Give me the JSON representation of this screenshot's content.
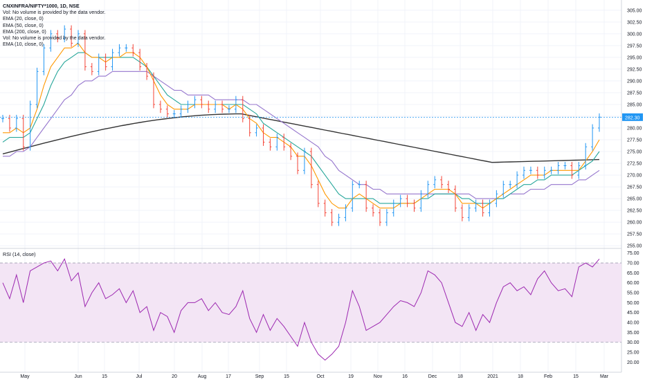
{
  "chart_data": [
    {
      "type": "line",
      "title": "CNXINFRA/NIFTY*1000, 1D, NSE",
      "subtitle": "",
      "legend": [
        "Vol: No volume is provided by the data vendor.",
        "EMA (20, close, 0)",
        "EMA (50, close, 0)",
        "EMA (200, close, 0)",
        "Vol: No volume is provided by the data vendor.",
        "EMA (10, close, 0)"
      ],
      "x_ticks": [
        "May",
        "Jun",
        "15",
        "Jul",
        "20",
        "Aug",
        "17",
        "Sep",
        "15",
        "Oct",
        "19",
        "Nov",
        "16",
        "Dec",
        "18",
        "2021",
        "18",
        "Feb",
        "15",
        "Mar"
      ],
      "y_ticks": [
        "305.00",
        "302.50",
        "300.00",
        "297.50",
        "295.00",
        "292.50",
        "290.00",
        "287.50",
        "285.00",
        "282.50",
        "280.00",
        "277.50",
        "275.00",
        "272.50",
        "270.00",
        "267.50",
        "265.00",
        "262.50",
        "260.00",
        "257.50",
        "255.00"
      ],
      "ylim": [
        254,
        306
      ],
      "last_price_label": "282.30",
      "last_price": 282.3,
      "colors": {
        "up": "#2196f3",
        "down": "#f44336",
        "ema10": "#ff9800",
        "ema20": "#26a69a",
        "ema50": "#9575cd",
        "ema200": "#333333"
      },
      "x": [
        0,
        10,
        20,
        30,
        40,
        50,
        60,
        70,
        80,
        90,
        100,
        110,
        120,
        130,
        140,
        150,
        160,
        170,
        180,
        190,
        200,
        210,
        220,
        230,
        240,
        250,
        260,
        270,
        280,
        290,
        300,
        310,
        320,
        330,
        340,
        350,
        360,
        370,
        380,
        390,
        400,
        410,
        420,
        430,
        440,
        450,
        460,
        470,
        480,
        490,
        500,
        510,
        520,
        530,
        540,
        550,
        560,
        570,
        580,
        590,
        600,
        610,
        620,
        630,
        640,
        650,
        660,
        670,
        680,
        690,
        700,
        710,
        720,
        730,
        740,
        750,
        760,
        770,
        780,
        790,
        800,
        810,
        820,
        830,
        840,
        850,
        860,
        870
      ],
      "close": [
        282,
        280,
        282,
        276,
        285,
        292,
        297,
        300,
        299,
        301,
        298,
        300,
        293,
        292,
        295,
        293,
        296,
        297,
        297,
        296,
        293,
        291,
        285,
        284,
        283,
        283,
        284,
        285,
        286,
        285,
        284,
        285,
        284,
        284,
        286,
        282,
        279,
        280,
        277,
        276,
        278,
        276,
        274,
        271,
        275,
        268,
        264,
        262,
        260,
        261,
        263,
        268,
        268,
        263,
        262,
        260,
        262,
        264,
        265,
        264,
        263,
        266,
        268,
        269,
        268,
        267,
        263,
        261,
        263,
        264,
        262,
        264,
        266,
        268,
        268,
        270,
        271,
        271,
        270,
        271,
        271,
        272,
        272,
        270,
        272,
        276,
        280,
        282.3
      ],
      "ema10": [
        279,
        279,
        280,
        279,
        280,
        284,
        289,
        293,
        295,
        297,
        297,
        298,
        296,
        295,
        295,
        294,
        295,
        295,
        296,
        296,
        295,
        293,
        290,
        287,
        285,
        284,
        284,
        284,
        285,
        285,
        285,
        285,
        285,
        284,
        285,
        284,
        282,
        281,
        279,
        278,
        278,
        277,
        276,
        274,
        274,
        272,
        269,
        266,
        264,
        263,
        263,
        265,
        266,
        265,
        264,
        263,
        263,
        263,
        264,
        264,
        264,
        265,
        266,
        267,
        267,
        267,
        266,
        264,
        264,
        264,
        263,
        264,
        265,
        266,
        267,
        268,
        269,
        270,
        270,
        270,
        271,
        271,
        271,
        271,
        271,
        273,
        275,
        277.5
      ],
      "ema20": [
        277,
        278,
        278,
        278,
        279,
        282,
        285,
        289,
        292,
        294,
        295,
        296,
        296,
        295,
        295,
        295,
        295,
        295,
        295,
        295,
        294,
        293,
        291,
        289,
        287,
        286,
        285,
        285,
        285,
        285,
        285,
        285,
        285,
        285,
        285,
        285,
        284,
        283,
        281,
        280,
        279,
        278,
        277,
        276,
        275,
        274,
        272,
        270,
        268,
        266,
        265,
        265,
        265,
        265,
        265,
        264,
        264,
        264,
        264,
        264,
        264,
        265,
        265,
        266,
        266,
        266,
        266,
        265,
        265,
        264,
        264,
        264,
        265,
        265,
        266,
        267,
        268,
        268,
        269,
        269,
        270,
        270,
        270,
        270,
        271,
        272,
        273,
        275
      ],
      "ema50": [
        274,
        274,
        275,
        275,
        276,
        278,
        280,
        282,
        284,
        286,
        287,
        289,
        290,
        290,
        291,
        291,
        292,
        292,
        292,
        292,
        292,
        292,
        291,
        290,
        289,
        288,
        288,
        287,
        287,
        287,
        287,
        286,
        286,
        286,
        286,
        286,
        285,
        285,
        284,
        283,
        282,
        281,
        280,
        279,
        278,
        277,
        276,
        274,
        273,
        271,
        270,
        269,
        268,
        268,
        267,
        267,
        266,
        266,
        266,
        266,
        266,
        266,
        266,
        266,
        266,
        266,
        266,
        266,
        266,
        265,
        265,
        265,
        265,
        265,
        266,
        266,
        266,
        267,
        267,
        267,
        268,
        268,
        268,
        268,
        269,
        269,
        270,
        271
      ]
    },
    {
      "type": "line",
      "title": "RSI (14, close)",
      "y_ticks": [
        "75.00",
        "70.00",
        "65.00",
        "60.00",
        "55.00",
        "50.00",
        "45.00",
        "40.00",
        "35.00",
        "30.00",
        "25.00",
        "20.00"
      ],
      "ylim": [
        17,
        77
      ],
      "band": [
        30,
        70
      ],
      "colors": {
        "line": "#9c27b0",
        "band": "#f3e5f5"
      },
      "values": [
        60,
        52,
        64,
        50,
        66,
        68,
        70,
        71,
        66,
        72,
        61,
        65,
        48,
        55,
        60,
        52,
        54,
        57,
        50,
        56,
        45,
        48,
        36,
        45,
        43,
        35,
        46,
        50,
        50,
        52,
        46,
        50,
        45,
        44,
        48,
        56,
        42,
        35,
        44,
        36,
        42,
        38,
        33,
        28,
        40,
        30,
        24,
        21,
        24,
        28,
        40,
        56,
        48,
        36,
        38,
        40,
        44,
        48,
        51,
        50,
        48,
        55,
        66,
        64,
        60,
        50,
        40,
        38,
        45,
        36,
        44,
        40,
        50,
        58,
        60,
        56,
        58,
        54,
        62,
        66,
        60,
        56,
        57,
        53,
        68,
        70,
        68,
        72
      ]
    }
  ]
}
